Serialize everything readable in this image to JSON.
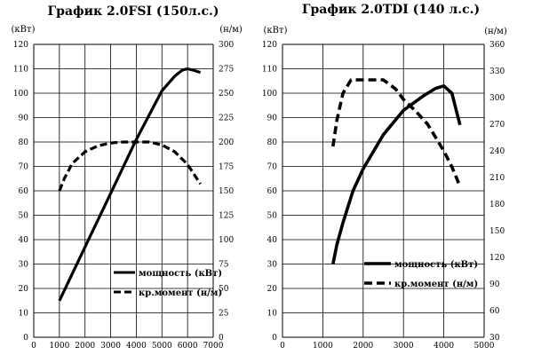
{
  "chart_data": [
    {
      "type": "line",
      "title": "График 2.0FSI (150л.с.)",
      "x_ticks": [
        "0",
        "1000",
        "2000",
        "3000",
        "4000",
        "5000",
        "6000",
        "7000"
      ],
      "xlim": [
        0,
        7000
      ],
      "left_axis": {
        "unit_label": "(кВт)",
        "ticks": [
          "0",
          "10",
          "20",
          "30",
          "40",
          "50",
          "60",
          "70",
          "80",
          "90",
          "100",
          "110",
          "120"
        ],
        "lim": [
          0,
          120
        ]
      },
      "right_axis": {
        "unit_label": "(н/м)",
        "ticks": [
          "0",
          "25",
          "50",
          "75",
          "100",
          "125",
          "150",
          "175",
          "200",
          "225",
          "250",
          "275",
          "300"
        ],
        "lim": [
          0,
          300
        ]
      },
      "grid": true,
      "series": [
        {
          "name": "мощность (кВт)",
          "axis": "left",
          "style": "solid",
          "x": [
            1000,
            2000,
            3000,
            4000,
            5000,
            5500,
            5800,
            6000,
            6200,
            6500
          ],
          "y": [
            15,
            37,
            59,
            81,
            101,
            107,
            109.5,
            110,
            109.5,
            108.5
          ]
        },
        {
          "name": "кр.момент (н/м)",
          "axis": "right",
          "style": "dashed",
          "x": [
            1000,
            1200,
            1500,
            2000,
            2500,
            3000,
            3500,
            4000,
            4500,
            5000,
            5500,
            6000,
            6500
          ],
          "y": [
            150,
            163,
            178,
            190,
            196,
            199,
            200,
            200,
            200,
            197,
            190,
            177,
            157
          ]
        }
      ],
      "legend_position": "bottom-right"
    },
    {
      "type": "line",
      "title": "График 2.0TDI (140 л.с.)",
      "x_ticks": [
        "0",
        "1000",
        "2000",
        "3000",
        "4000",
        "5000"
      ],
      "xlim": [
        0,
        5000
      ],
      "left_axis": {
        "unit_label": "(кВт)",
        "ticks": [
          "0",
          "10",
          "20",
          "30",
          "40",
          "50",
          "60",
          "70",
          "80",
          "90",
          "100",
          "110",
          "120"
        ],
        "lim": [
          0,
          120
        ]
      },
      "right_axis": {
        "unit_label": "(н/м)",
        "ticks": [
          "30",
          "60",
          "90",
          "120",
          "150",
          "180",
          "210",
          "240",
          "270",
          "300",
          "330",
          "360"
        ],
        "lim": [
          30,
          360
        ]
      },
      "grid": true,
      "series": [
        {
          "name": "мощность (кВт)",
          "axis": "left",
          "style": "solid",
          "x": [
            1250,
            1350,
            1500,
            1750,
            2000,
            2500,
            3000,
            3500,
            3800,
            4000,
            4200,
            4400
          ],
          "y": [
            30,
            38,
            47,
            60,
            69,
            83,
            93,
            99,
            102,
            103,
            100,
            87
          ]
        },
        {
          "name": "кр.момент (н/м)",
          "axis": "right",
          "style": "dashed",
          "x": [
            1250,
            1350,
            1500,
            1700,
            2000,
            2500,
            2800,
            3000,
            3300,
            3600,
            4000,
            4200,
            4400
          ],
          "y": [
            245,
            275,
            305,
            320,
            320,
            320,
            310,
            298,
            285,
            270,
            240,
            222,
            200
          ]
        }
      ],
      "legend_position": "bottom-right"
    }
  ]
}
